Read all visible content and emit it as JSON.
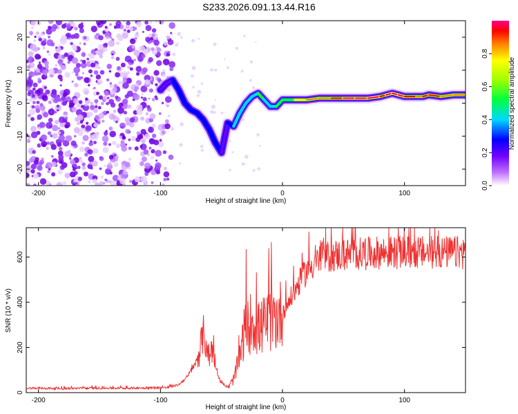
{
  "title": "S233.2026.091.13.44.R16",
  "colors": {
    "snr_line": "#f03030",
    "axis": "#000000"
  },
  "chart_data": [
    {
      "type": "heatmap",
      "name": "spectrogram",
      "xlabel": "Height of straight line (km)",
      "ylabel": "Frequency (Hz)",
      "xlim": [
        -210,
        150
      ],
      "ylim": [
        -25,
        25
      ],
      "xticks": [
        -200,
        -100,
        0,
        100
      ],
      "xtick_labels": [
        "-200",
        "-100",
        "0",
        "100"
      ],
      "yticks": [
        -20,
        -10,
        0,
        10,
        20
      ],
      "ytick_labels": [
        "-20",
        "-10",
        "0",
        "10",
        "20"
      ],
      "colorbar": {
        "label": "Normalized spectral amplitude",
        "range": [
          0,
          1
        ],
        "ticks": [
          0.0,
          0.2,
          0.4,
          0.6,
          0.8
        ],
        "tick_labels": [
          "0.0",
          "0.2",
          "0.4",
          "0.6",
          "0.8"
        ]
      },
      "ridge": {
        "x": [
          -100,
          -95,
          -90,
          -85,
          -80,
          -75,
          -70,
          -65,
          -60,
          -55,
          -50,
          -45,
          -40,
          -35,
          -30,
          -25,
          -20,
          -15,
          -10,
          -5,
          0,
          5,
          10,
          20,
          30,
          40,
          50,
          60,
          70,
          80,
          85,
          90,
          95,
          100,
          110,
          115,
          120,
          130,
          140,
          150
        ],
        "y": [
          4,
          6,
          7,
          4,
          0,
          -2,
          -3,
          -5,
          -8,
          -12,
          -15,
          -6,
          -7,
          -3,
          0,
          2,
          3,
          1,
          -1,
          -1,
          1,
          1,
          1,
          1,
          1.5,
          1.5,
          1.5,
          1.5,
          1.5,
          2,
          2.5,
          3,
          2.5,
          2,
          2,
          2,
          2.5,
          2,
          2.5,
          2.5
        ],
        "amplitude": [
          0.2,
          0.25,
          0.3,
          0.35,
          0.4,
          0.4,
          0.35,
          0.35,
          0.3,
          0.3,
          0.25,
          0.4,
          0.45,
          0.5,
          0.5,
          0.55,
          0.6,
          0.55,
          0.55,
          0.6,
          0.6,
          0.7,
          0.75,
          0.8,
          0.85,
          0.9,
          0.95,
          0.95,
          0.95,
          0.9,
          0.95,
          1.0,
          0.95,
          0.9,
          0.85,
          0.9,
          0.9,
          0.85,
          0.85,
          0.85
        ]
      }
    },
    {
      "type": "line",
      "name": "snr",
      "xlabel": "Height of straight line (km)",
      "ylabel": "SNR (10 * v/v)",
      "xlim": [
        -210,
        150
      ],
      "ylim": [
        0,
        730
      ],
      "xticks": [
        -200,
        -100,
        0,
        100
      ],
      "xtick_labels": [
        "-200",
        "-100",
        "0",
        "100"
      ],
      "yticks": [
        0,
        200,
        400,
        600
      ],
      "ytick_labels": [
        "0",
        "200",
        "400",
        "600"
      ],
      "series": [
        {
          "name": "SNR",
          "x": [
            -210,
            -180,
            -150,
            -120,
            -95,
            -85,
            -78,
            -72,
            -68,
            -65,
            -62,
            -60,
            -58,
            -55,
            -52,
            -50,
            -47,
            -44,
            -40,
            -35,
            -32,
            -30,
            -28,
            -25,
            -22,
            -20,
            -15,
            -10,
            -5,
            0,
            5,
            10,
            15,
            20,
            25,
            30,
            40,
            50,
            60,
            70,
            80,
            90,
            100,
            110,
            120,
            130,
            140,
            150
          ],
          "y": [
            20,
            18,
            20,
            20,
            22,
            35,
            70,
            120,
            180,
            260,
            210,
            150,
            200,
            130,
            60,
            45,
            30,
            25,
            60,
            150,
            250,
            300,
            280,
            330,
            300,
            280,
            300,
            320,
            330,
            360,
            400,
            450,
            500,
            540,
            570,
            590,
            605,
            610,
            615,
            615,
            620,
            620,
            620,
            620,
            620,
            620,
            620,
            620
          ]
        }
      ]
    }
  ]
}
